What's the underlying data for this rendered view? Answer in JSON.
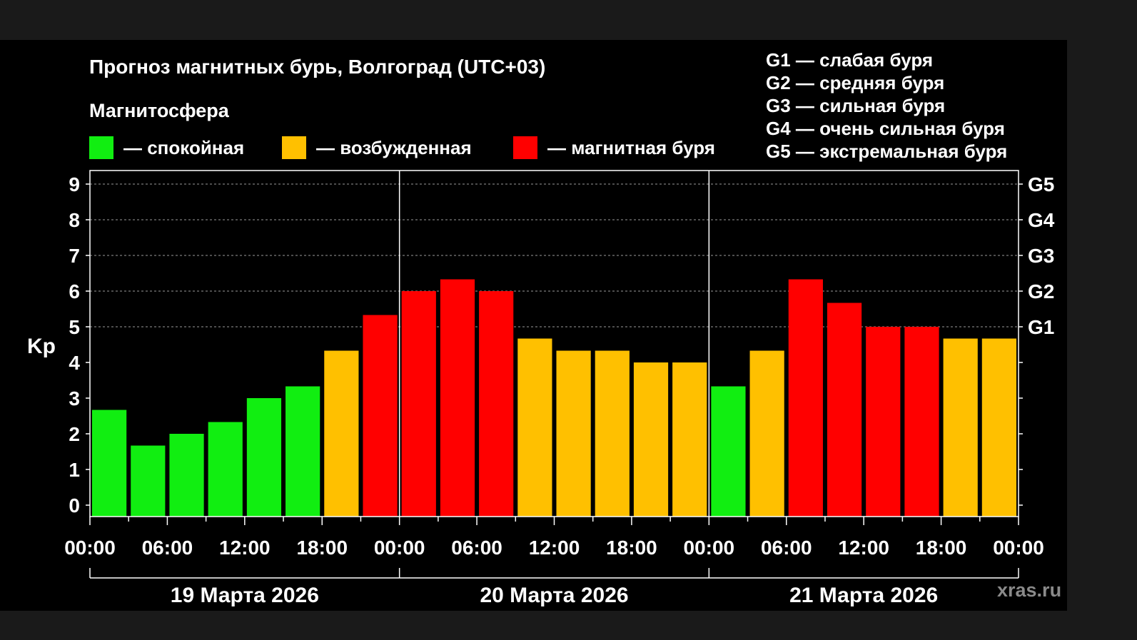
{
  "title": "Прогноз магнитных бурь, Волгоград (UTC+03)",
  "subtitle": "Магнитосфера",
  "legend": [
    {
      "label": "— спокойная",
      "color": "#11ee11"
    },
    {
      "label": "— возбужденная",
      "color": "#ffc000"
    },
    {
      "label": "— магнитная буря",
      "color": "#ff0000"
    }
  ],
  "g_scale": [
    "G1 — слабая буря",
    "G2 — средняя буря",
    "G3 — сильная буря",
    "G4 — очень сильная буря",
    "G5 — экстремальная буря"
  ],
  "watermark": "xras.ru",
  "chart_data": {
    "type": "bar",
    "ylabel": "Kp",
    "ylim": [
      0,
      9
    ],
    "yticks": [
      "0",
      "1",
      "2",
      "3",
      "4",
      "5",
      "6",
      "7",
      "8",
      "9"
    ],
    "right_ticks": [
      {
        "value": 5,
        "label": "G1"
      },
      {
        "value": 6,
        "label": "G2"
      },
      {
        "value": 7,
        "label": "G3"
      },
      {
        "value": 8,
        "label": "G4"
      },
      {
        "value": 9,
        "label": "G5"
      }
    ],
    "xticks": [
      "00:00",
      "06:00",
      "12:00",
      "18:00",
      "00:00",
      "06:00",
      "12:00",
      "18:00",
      "00:00",
      "06:00",
      "12:00",
      "18:00",
      "00:00"
    ],
    "days": [
      "19 Марта 2026",
      "20 Марта 2026",
      "21 Марта 2026"
    ],
    "grid": "horizontal dashed",
    "colors": {
      "quiet": "#11ee11",
      "active": "#ffc000",
      "storm": "#ff0000"
    },
    "values": [
      2.67,
      1.67,
      2.0,
      2.33,
      3.0,
      3.33,
      4.33,
      5.33,
      6.0,
      6.33,
      6.0,
      4.67,
      4.33,
      4.33,
      4.0,
      4.0,
      3.33,
      4.33,
      6.33,
      5.67,
      5.0,
      5.0,
      4.67,
      4.67
    ],
    "levels": [
      "quiet",
      "quiet",
      "quiet",
      "quiet",
      "quiet",
      "quiet",
      "active",
      "storm",
      "storm",
      "storm",
      "storm",
      "active",
      "active",
      "active",
      "active",
      "active",
      "quiet",
      "active",
      "storm",
      "storm",
      "storm",
      "storm",
      "active",
      "active"
    ]
  }
}
